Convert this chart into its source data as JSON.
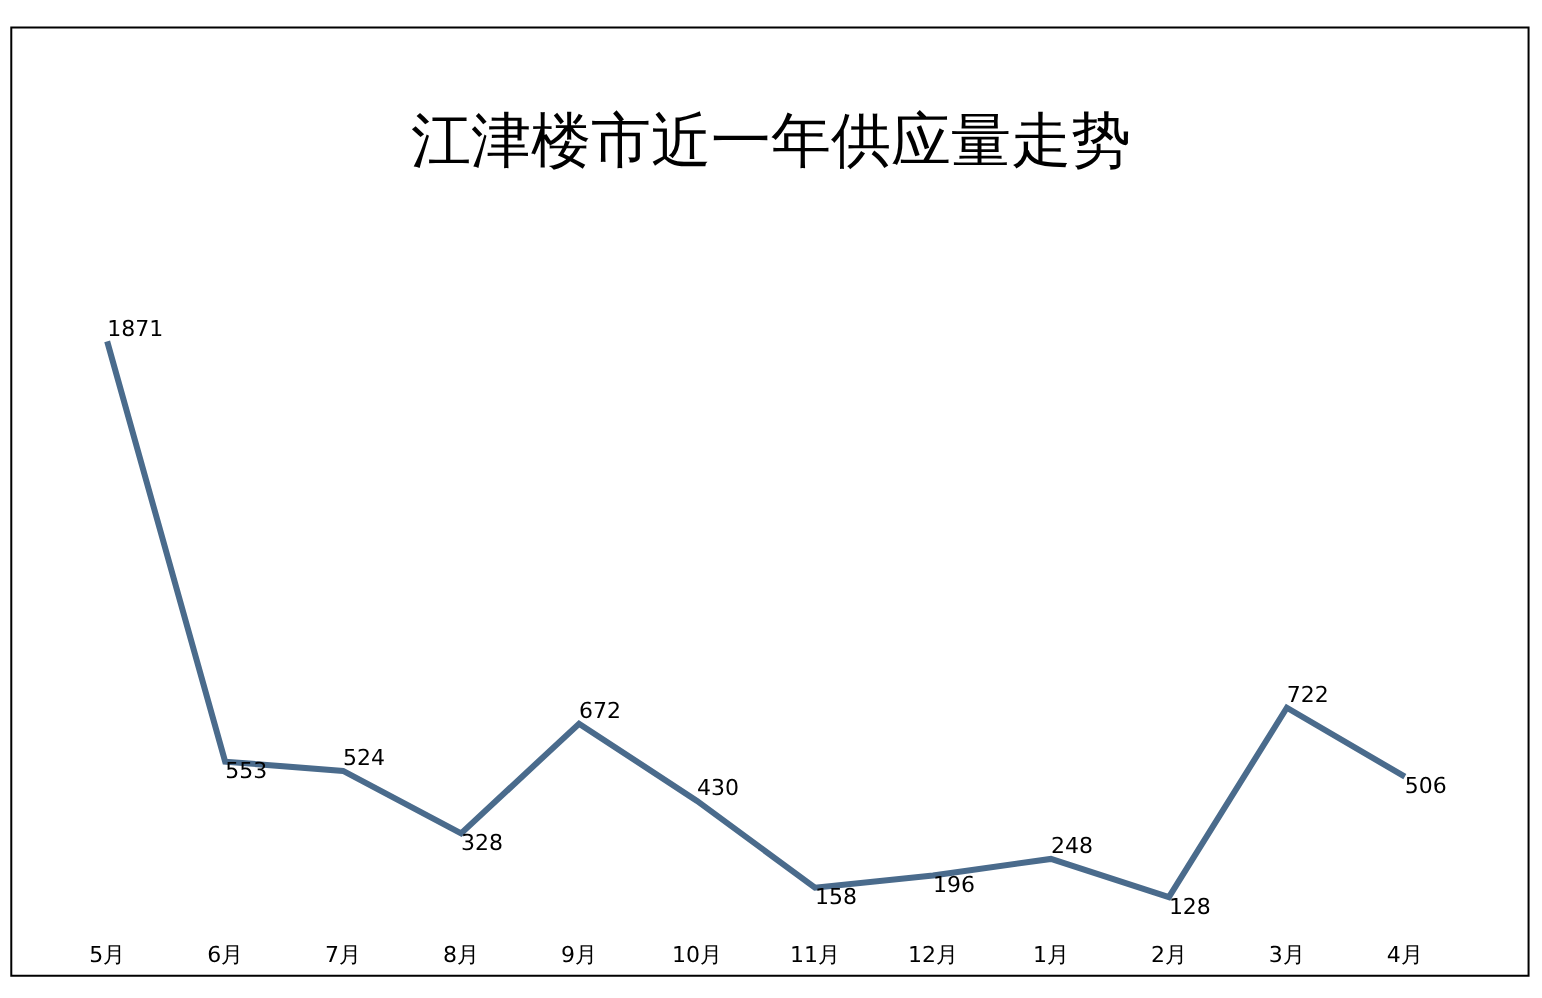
{
  "chart_data": {
    "type": "line",
    "title": "江津楼市近一年供应量走势",
    "categories": [
      "5月",
      "6月",
      "7月",
      "8月",
      "9月",
      "10月",
      "11月",
      "12月",
      "1月",
      "2月",
      "3月",
      "4月"
    ],
    "series": [
      {
        "color": "#4a6b8c",
        "values": [
          1871,
          553,
          524,
          328,
          672,
          430,
          158,
          196,
          248,
          128,
          722,
          506
        ]
      }
    ],
    "data_labels": true,
    "marker": "none",
    "line_style": "solid",
    "tick_labels": "x"
  }
}
